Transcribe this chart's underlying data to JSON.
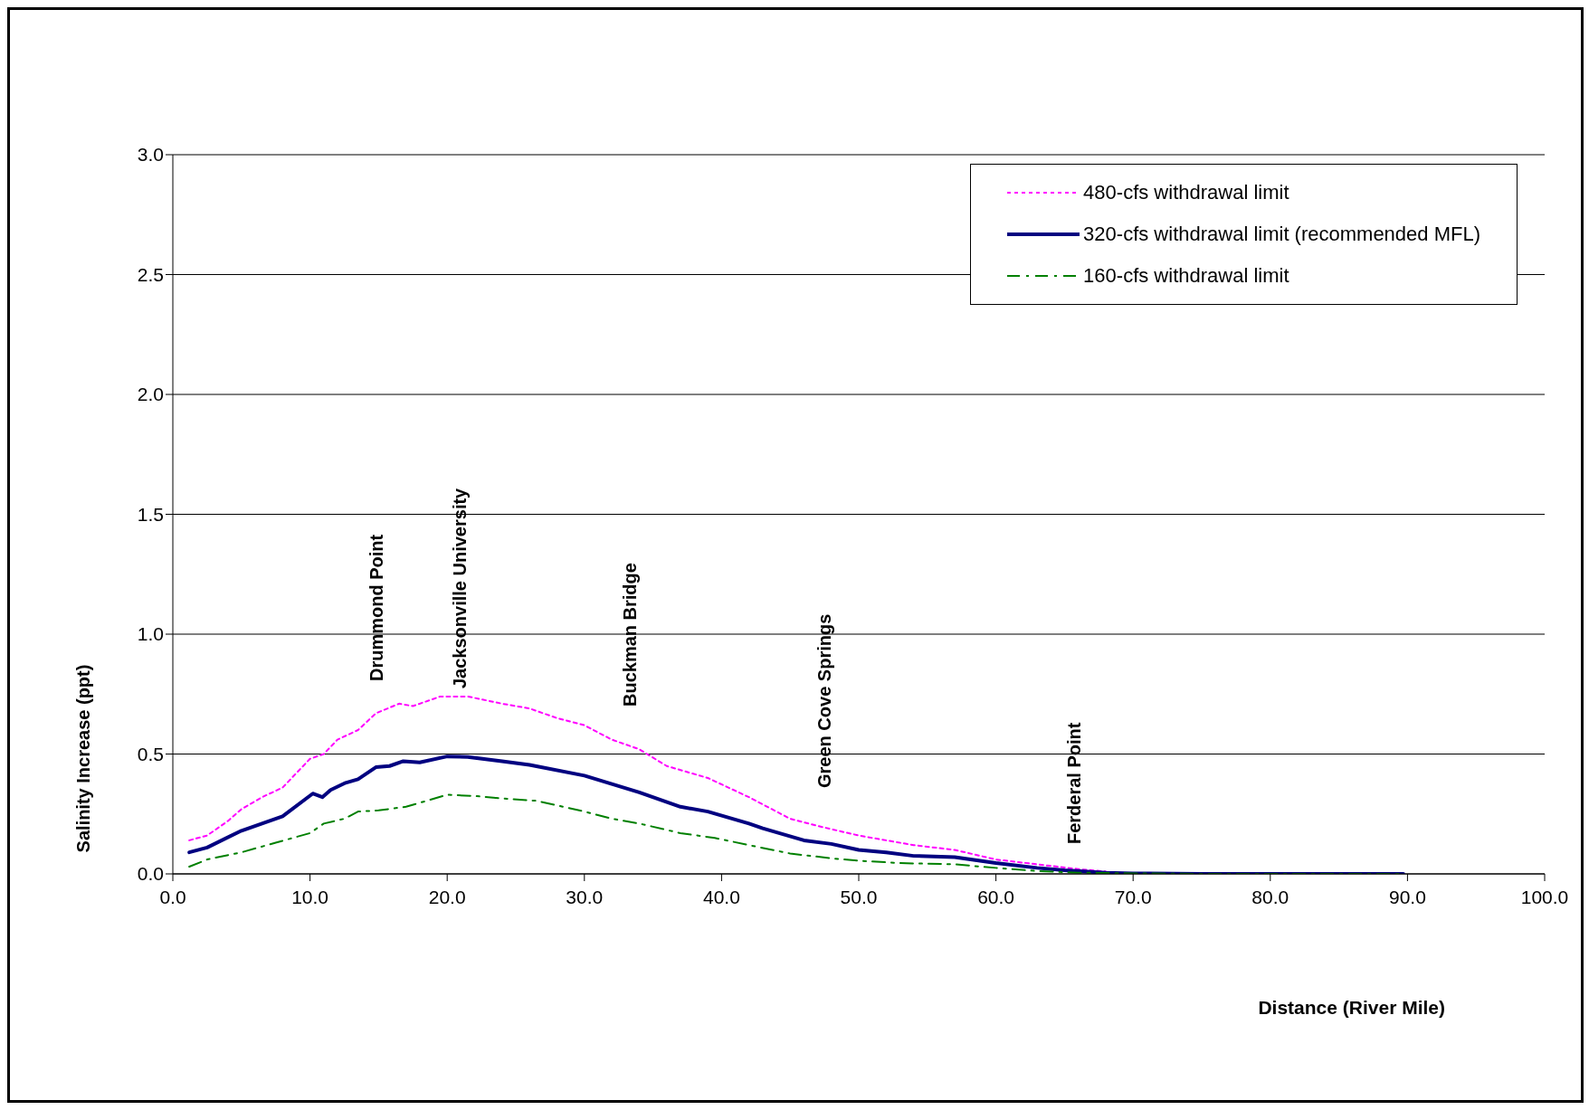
{
  "chart_data": {
    "type": "line",
    "xlabel": "Distance (River Mile)",
    "ylabel": "Salinity Increase (ppt)",
    "xlim": [
      0,
      100
    ],
    "xticks": [
      {
        "value": 0,
        "label": "0.0"
      },
      {
        "value": 10,
        "label": "10.0"
      },
      {
        "value": 20,
        "label": "20.0"
      },
      {
        "value": 30,
        "label": "30.0"
      },
      {
        "value": 40,
        "label": "40.0"
      },
      {
        "value": 50,
        "label": "50.0"
      },
      {
        "value": 60,
        "label": "60.0"
      },
      {
        "value": 70,
        "label": "70.0"
      },
      {
        "value": 80,
        "label": "80.0"
      },
      {
        "value": 90,
        "label": "90.0"
      },
      {
        "value": 100,
        "label": "100.0"
      }
    ],
    "ylim": [
      0,
      3
    ],
    "yticks": [
      {
        "value": 0,
        "label": "0.0"
      },
      {
        "value": 0.5,
        "label": "0.5"
      },
      {
        "value": 1,
        "label": "1.0"
      },
      {
        "value": 1.5,
        "label": "1.5"
      },
      {
        "value": 2,
        "label": "2.0"
      },
      {
        "value": 2.5,
        "label": "2.5"
      },
      {
        "value": 3,
        "label": "3.0"
      }
    ],
    "grid": "y",
    "legend": "top right",
    "marker": "none",
    "series": [
      {
        "name": "480-cfs withdrawal limit",
        "color": "#ff00ff",
        "line_style": "dotted",
        "x": [
          1.2,
          2.5,
          4,
          5,
          6.5,
          8,
          10,
          11,
          12,
          13.5,
          14.8,
          16.5,
          17.5,
          19.5,
          21.5,
          24,
          26,
          28,
          30,
          32,
          34,
          36,
          39,
          42,
          45,
          47,
          50,
          54,
          57,
          60,
          63,
          66,
          68
        ],
        "values": [
          0.14,
          0.16,
          0.22,
          0.27,
          0.32,
          0.36,
          0.48,
          0.5,
          0.56,
          0.6,
          0.67,
          0.71,
          0.7,
          0.74,
          0.74,
          0.71,
          0.69,
          0.65,
          0.62,
          0.56,
          0.52,
          0.45,
          0.4,
          0.32,
          0.23,
          0.2,
          0.16,
          0.12,
          0.1,
          0.06,
          0.04,
          0.02,
          0.01
        ]
      },
      {
        "name": "320-cfs withdrawal limit (recommended MFL)",
        "color": "#000080",
        "line_style": "solid",
        "x": [
          1.2,
          2.5,
          5,
          6.5,
          8,
          10.2,
          10.9,
          11.5,
          12.6,
          13.5,
          14.8,
          15.8,
          16.8,
          18,
          20,
          21.5,
          24,
          26,
          30,
          32,
          34,
          37,
          39,
          42,
          43,
          46,
          48,
          50,
          52,
          54,
          57,
          60,
          63,
          65,
          68,
          70,
          75,
          80,
          85,
          89.7
        ],
        "values": [
          0.09,
          0.11,
          0.18,
          0.21,
          0.24,
          0.335,
          0.32,
          0.35,
          0.38,
          0.395,
          0.445,
          0.45,
          0.47,
          0.465,
          0.49,
          0.488,
          0.47,
          0.455,
          0.41,
          0.375,
          0.34,
          0.28,
          0.26,
          0.21,
          0.19,
          0.14,
          0.125,
          0.1,
          0.09,
          0.075,
          0.07,
          0.045,
          0.025,
          0.015,
          0.005,
          0.002,
          0,
          0,
          0,
          0
        ]
      },
      {
        "name": "160-cfs withdrawal limit",
        "color": "#008000",
        "line_style": "dashed",
        "x": [
          1.2,
          2.5,
          5,
          7.5,
          10,
          11,
          12.5,
          13.5,
          15,
          17,
          20,
          22,
          24,
          26.5,
          30,
          32,
          34,
          37,
          39.5,
          42,
          45,
          48,
          50,
          53,
          57,
          60,
          63,
          66,
          70,
          75,
          89.7
        ],
        "values": [
          0.03,
          0.06,
          0.09,
          0.13,
          0.17,
          0.21,
          0.23,
          0.26,
          0.265,
          0.28,
          0.33,
          0.325,
          0.315,
          0.305,
          0.26,
          0.23,
          0.21,
          0.17,
          0.15,
          0.12,
          0.085,
          0.065,
          0.055,
          0.045,
          0.04,
          0.025,
          0.012,
          0.005,
          0.002,
          0,
          0
        ]
      }
    ],
    "annotations": [
      "Drummond Point",
      "Jacksonville University",
      "Buckman Bridge",
      "Green Cove Springs",
      "Ferderal Point"
    ]
  }
}
